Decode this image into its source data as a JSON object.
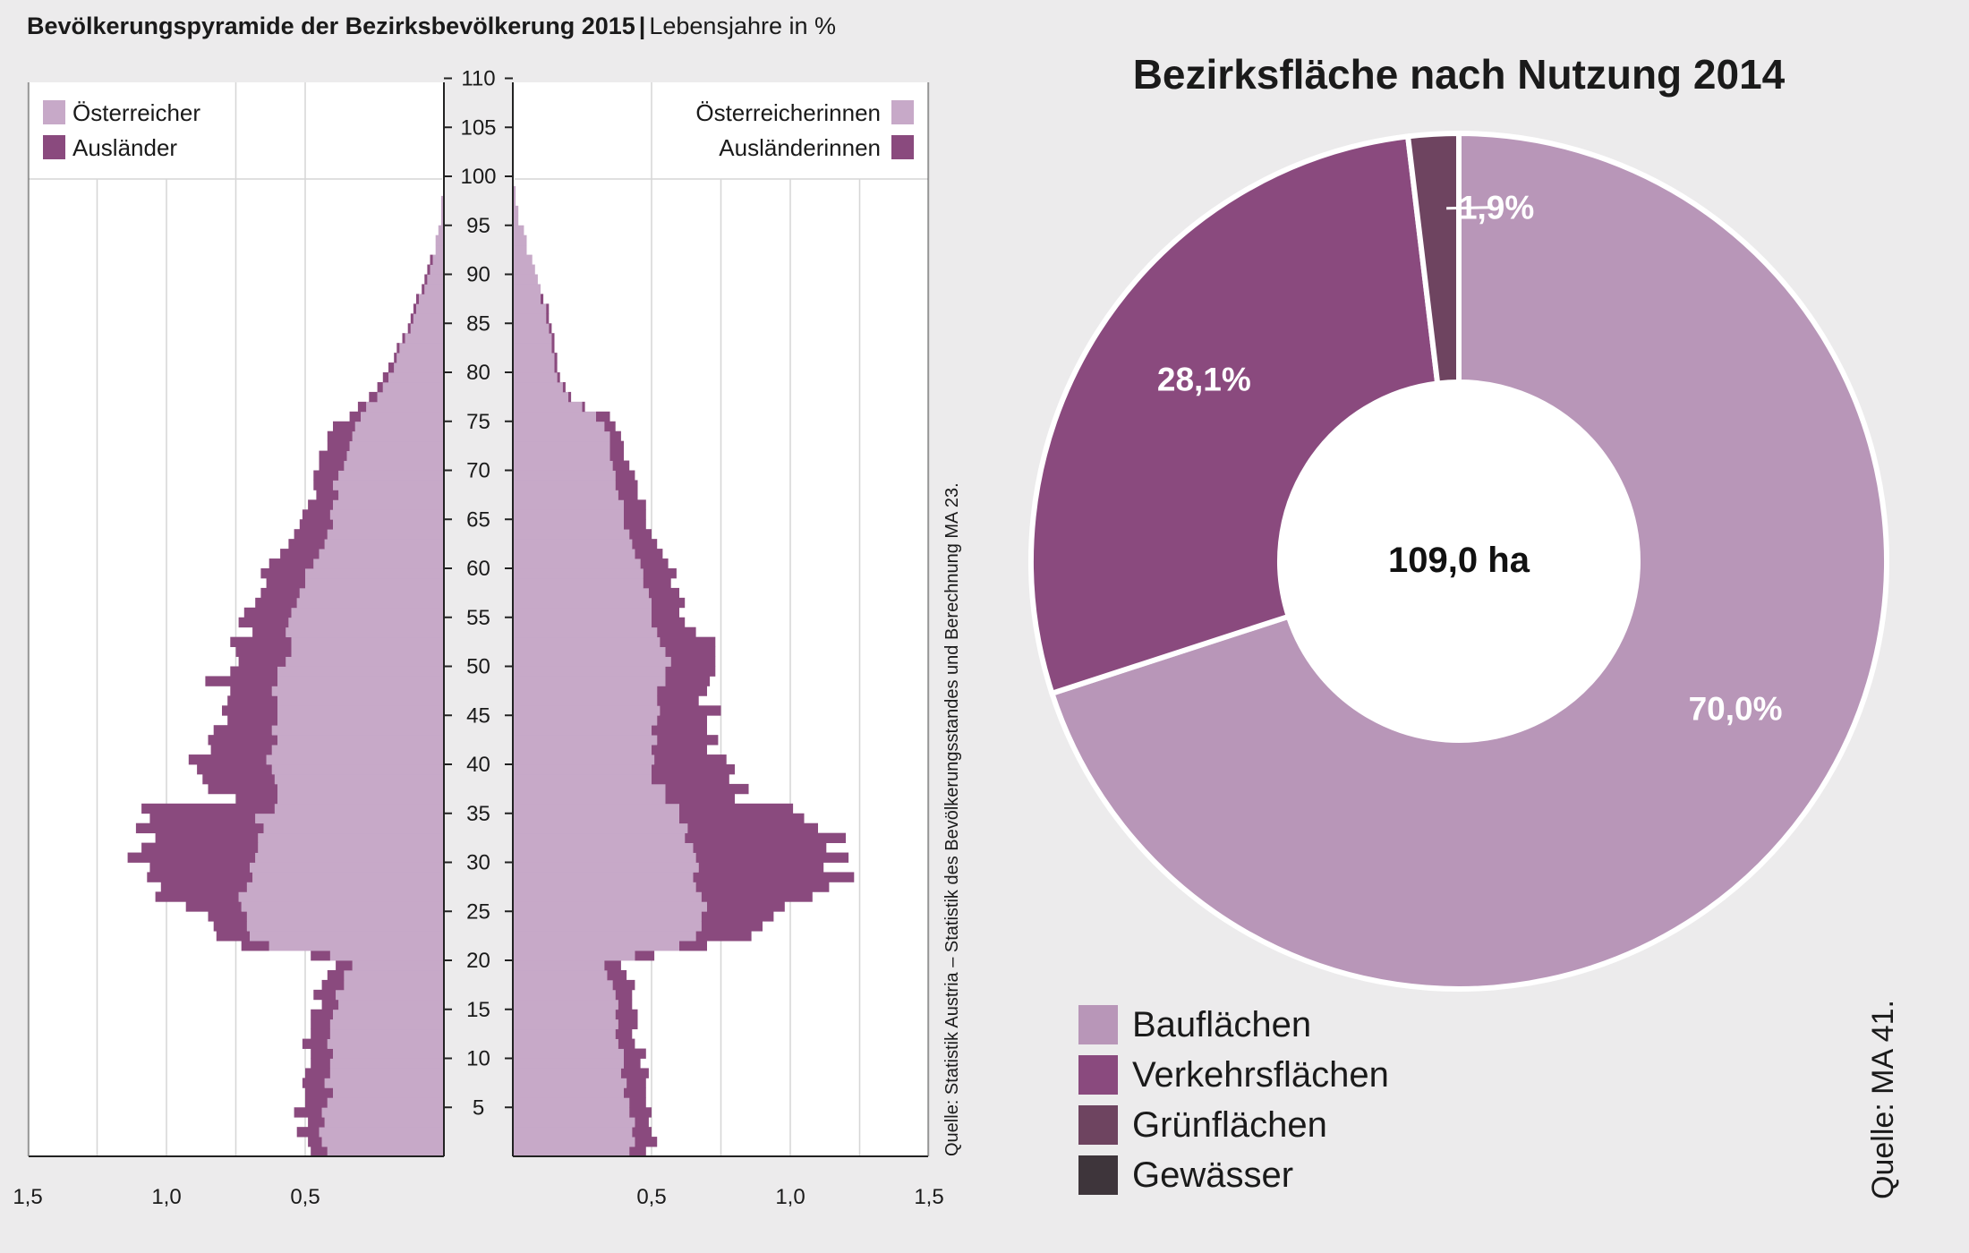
{
  "pyramid": {
    "title": "Bevölkerungspyramide der Bezirksbevölkerung 2015",
    "title_separator": "|",
    "subtitle": "Lebensjahre in %",
    "legend_left": [
      {
        "label": "Österreicher",
        "color": "#c7a9c8"
      },
      {
        "label": "Ausländer",
        "color": "#8a4a7e"
      }
    ],
    "legend_right": [
      {
        "label": "Österreicherinnen",
        "color": "#c7a9c8"
      },
      {
        "label": "Ausländerinnen",
        "color": "#8a4a7e"
      }
    ],
    "source": "Quelle: Statistik Austria – Statistik des Bevölkerungsstandes und Berechnung MA 23."
  },
  "donut": {
    "title": "Bezirksfläche nach Nutzung 2014",
    "center_label": "109,0 ha",
    "source": "Quelle: MA 41."
  },
  "chart_data": [
    {
      "type": "bar",
      "orientation": "horizontal",
      "title": "Bevölkerungspyramide der Bezirksbevölkerung 2015",
      "subtitle": "Lebensjahre in %",
      "age_ticks": [
        5,
        10,
        15,
        20,
        25,
        30,
        35,
        40,
        45,
        50,
        55,
        60,
        65,
        70,
        75,
        80,
        85,
        90,
        95,
        100,
        105,
        110
      ],
      "x_ticks_left": [
        "1,5",
        "1,0",
        "0,5"
      ],
      "x_ticks_right": [
        "0,5",
        "1,0",
        "1,5"
      ],
      "xlim": [
        0,
        1.5
      ],
      "ylim": [
        0,
        110
      ],
      "ages": [
        0,
        1,
        2,
        3,
        4,
        5,
        6,
        7,
        8,
        9,
        10,
        11,
        12,
        13,
        14,
        15,
        16,
        17,
        18,
        19,
        20,
        21,
        22,
        23,
        24,
        25,
        26,
        27,
        28,
        29,
        30,
        31,
        32,
        33,
        34,
        35,
        36,
        37,
        38,
        39,
        40,
        41,
        42,
        43,
        44,
        45,
        46,
        47,
        48,
        49,
        50,
        51,
        52,
        53,
        54,
        55,
        56,
        57,
        58,
        59,
        60,
        61,
        62,
        63,
        64,
        65,
        66,
        67,
        68,
        69,
        70,
        71,
        72,
        73,
        74,
        75,
        76,
        77,
        78,
        79,
        80,
        81,
        82,
        83,
        84,
        85,
        86,
        87,
        88,
        89,
        90,
        91,
        92,
        93,
        94,
        95,
        96,
        97,
        98,
        99,
        100
      ],
      "series": [
        {
          "name": "Österreicher",
          "side": "left",
          "color": "#c7a9c8",
          "values": [
            0.42,
            0.44,
            0.45,
            0.43,
            0.44,
            0.42,
            0.4,
            0.43,
            0.41,
            0.41,
            0.4,
            0.42,
            0.41,
            0.41,
            0.4,
            0.38,
            0.39,
            0.36,
            0.36,
            0.33,
            0.41,
            0.63,
            0.7,
            0.71,
            0.71,
            0.73,
            0.74,
            0.71,
            0.69,
            0.7,
            0.68,
            0.67,
            0.67,
            0.65,
            0.68,
            0.61,
            0.6,
            0.6,
            0.61,
            0.62,
            0.64,
            0.62,
            0.6,
            0.62,
            0.6,
            0.6,
            0.6,
            0.62,
            0.6,
            0.6,
            0.57,
            0.55,
            0.55,
            0.57,
            0.56,
            0.55,
            0.53,
            0.52,
            0.5,
            0.5,
            0.47,
            0.45,
            0.43,
            0.42,
            0.4,
            0.41,
            0.4,
            0.38,
            0.4,
            0.38,
            0.36,
            0.35,
            0.34,
            0.33,
            0.32,
            0.3,
            0.28,
            0.24,
            0.22,
            0.2,
            0.18,
            0.17,
            0.16,
            0.14,
            0.12,
            0.11,
            0.1,
            0.09,
            0.07,
            0.06,
            0.05,
            0.04,
            0.03,
            0.03,
            0.02,
            0.01,
            0.01,
            0.01,
            0.0,
            0.0,
            0.0
          ]
        },
        {
          "name": "Ausländer",
          "side": "left",
          "color": "#8a4a7e",
          "values": [
            0.06,
            0.05,
            0.08,
            0.06,
            0.1,
            0.08,
            0.1,
            0.08,
            0.09,
            0.07,
            0.08,
            0.09,
            0.07,
            0.07,
            0.08,
            0.06,
            0.08,
            0.08,
            0.06,
            0.06,
            0.07,
            0.1,
            0.12,
            0.12,
            0.14,
            0.2,
            0.3,
            0.31,
            0.38,
            0.36,
            0.46,
            0.42,
            0.37,
            0.46,
            0.38,
            0.48,
            0.15,
            0.25,
            0.26,
            0.27,
            0.28,
            0.22,
            0.25,
            0.21,
            0.18,
            0.2,
            0.18,
            0.15,
            0.26,
            0.17,
            0.17,
            0.2,
            0.22,
            0.12,
            0.18,
            0.17,
            0.15,
            0.14,
            0.14,
            0.16,
            0.16,
            0.14,
            0.13,
            0.12,
            0.12,
            0.1,
            0.09,
            0.08,
            0.07,
            0.09,
            0.09,
            0.1,
            0.08,
            0.09,
            0.08,
            0.04,
            0.03,
            0.03,
            0.02,
            0.02,
            0.02,
            0.01,
            0.01,
            0.01,
            0.01,
            0.01,
            0.01,
            0.01,
            0.01,
            0.01,
            0.01,
            0.01,
            0.0,
            0.0,
            0.0,
            0.0,
            0.0,
            0.0,
            0.0,
            0.0,
            0.0
          ]
        },
        {
          "name": "Österreicherinnen",
          "side": "right",
          "color": "#c7a9c8",
          "values": [
            0.42,
            0.44,
            0.43,
            0.44,
            0.42,
            0.42,
            0.4,
            0.41,
            0.39,
            0.4,
            0.4,
            0.38,
            0.37,
            0.38,
            0.37,
            0.38,
            0.37,
            0.36,
            0.34,
            0.33,
            0.44,
            0.6,
            0.66,
            0.68,
            0.68,
            0.7,
            0.68,
            0.66,
            0.65,
            0.67,
            0.66,
            0.65,
            0.62,
            0.63,
            0.6,
            0.6,
            0.55,
            0.55,
            0.5,
            0.5,
            0.51,
            0.5,
            0.52,
            0.5,
            0.52,
            0.53,
            0.52,
            0.52,
            0.55,
            0.55,
            0.57,
            0.55,
            0.53,
            0.52,
            0.5,
            0.5,
            0.5,
            0.49,
            0.47,
            0.47,
            0.46,
            0.44,
            0.43,
            0.42,
            0.4,
            0.4,
            0.4,
            0.38,
            0.37,
            0.37,
            0.36,
            0.35,
            0.35,
            0.35,
            0.33,
            0.3,
            0.25,
            0.2,
            0.18,
            0.16,
            0.15,
            0.15,
            0.14,
            0.14,
            0.13,
            0.12,
            0.12,
            0.1,
            0.1,
            0.09,
            0.08,
            0.07,
            0.05,
            0.05,
            0.04,
            0.02,
            0.02,
            0.01,
            0.01,
            0.0,
            0.0
          ]
        },
        {
          "name": "Ausländerinnen",
          "side": "right",
          "color": "#8a4a7e",
          "values": [
            0.06,
            0.08,
            0.07,
            0.05,
            0.08,
            0.06,
            0.08,
            0.07,
            0.1,
            0.06,
            0.08,
            0.06,
            0.06,
            0.07,
            0.08,
            0.05,
            0.06,
            0.08,
            0.07,
            0.06,
            0.07,
            0.1,
            0.2,
            0.22,
            0.26,
            0.28,
            0.4,
            0.48,
            0.58,
            0.45,
            0.55,
            0.48,
            0.58,
            0.47,
            0.45,
            0.41,
            0.25,
            0.3,
            0.28,
            0.3,
            0.26,
            0.2,
            0.22,
            0.2,
            0.18,
            0.22,
            0.15,
            0.18,
            0.16,
            0.18,
            0.16,
            0.18,
            0.2,
            0.14,
            0.12,
            0.1,
            0.12,
            0.11,
            0.1,
            0.12,
            0.1,
            0.1,
            0.09,
            0.08,
            0.08,
            0.08,
            0.08,
            0.07,
            0.08,
            0.07,
            0.06,
            0.05,
            0.05,
            0.04,
            0.04,
            0.05,
            0.01,
            0.01,
            0.01,
            0.01,
            0.01,
            0.01,
            0.01,
            0.01,
            0.01,
            0.01,
            0.01,
            0.01,
            0.0,
            0.0,
            0.0,
            0.0,
            0.0,
            0.0,
            0.0,
            0.0,
            0.0,
            0.0,
            0.0,
            0.0,
            0.0
          ]
        }
      ]
    },
    {
      "type": "pie",
      "title": "Bezirksfläche nach Nutzung 2014",
      "center_label": "109,0 ha",
      "slices": [
        {
          "label": "Bauflächen",
          "value": 70.0,
          "display": "70,0%",
          "color": "#b896b8"
        },
        {
          "label": "Verkehrsflächen",
          "value": 28.1,
          "display": "28,1%",
          "color": "#8a4a7e"
        },
        {
          "label": "Grünflächen",
          "value": 1.9,
          "display": "1,9%",
          "color": "#6e4460"
        }
      ],
      "legend": [
        {
          "label": "Bauflächen",
          "color": "#b896b8"
        },
        {
          "label": "Verkehrsflächen",
          "color": "#8a4a7e"
        },
        {
          "label": "Grünflächen",
          "color": "#6e4460"
        },
        {
          "label": "Gewässer",
          "color": "#3e353b"
        }
      ]
    }
  ]
}
